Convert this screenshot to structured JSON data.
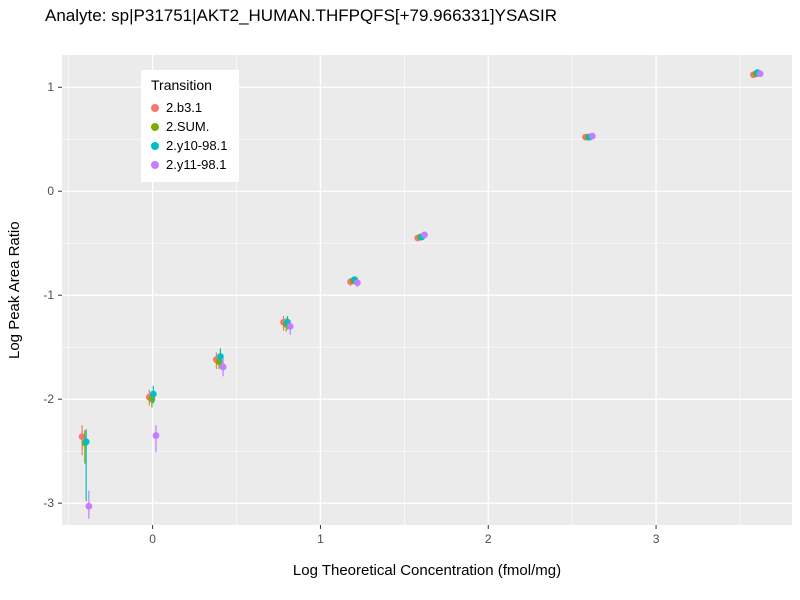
{
  "chart_data": {
    "type": "scatter",
    "title": "Analyte: sp|P31751|AKT2_HUMAN.THFPQFS[+79.966331]YSASIR",
    "xlabel": "Log Theoretical Concentration (fmol/mg)",
    "ylabel": "Log Peak Area Ratio",
    "xlim": [
      -0.54,
      3.81
    ],
    "ylim": [
      -3.21,
      1.31
    ],
    "x_ticks": [
      0,
      1,
      2,
      3
    ],
    "y_ticks": [
      -3,
      -2,
      -1,
      0,
      1
    ],
    "grid": true,
    "panel_bg": "#EBEBEB",
    "grid_color": "#FFFFFF",
    "tick_color": "#333333",
    "tick_label_color": "#4D4D4D",
    "legend": {
      "title": "Transition",
      "position": "top-left-inside"
    },
    "series": [
      {
        "name": "2.b3.1",
        "color": "#F8766D",
        "dx": -0.02,
        "points": [
          {
            "x": -0.4,
            "y": -2.36,
            "lo": -2.54,
            "hi": -2.25
          },
          {
            "x": 0.0,
            "y": -1.98,
            "lo": -2.06,
            "hi": -1.91
          },
          {
            "x": 0.4,
            "y": -1.62,
            "lo": -1.71,
            "hi": -1.55
          },
          {
            "x": 0.8,
            "y": -1.26,
            "lo": -1.34,
            "hi": -1.2
          },
          {
            "x": 1.2,
            "y": -0.87,
            "lo": -0.91,
            "hi": -0.84
          },
          {
            "x": 1.6,
            "y": -0.45,
            "lo": -0.47,
            "hi": -0.43
          },
          {
            "x": 2.6,
            "y": 0.52,
            "lo": 0.5,
            "hi": 0.53
          },
          {
            "x": 3.6,
            "y": 1.12,
            "lo": 1.11,
            "hi": 1.14
          }
        ]
      },
      {
        "name": "2.SUM.",
        "color": "#7CAE00",
        "dx": -0.004,
        "points": [
          {
            "x": -0.4,
            "y": -2.42,
            "lo": -2.62,
            "hi": -2.3
          },
          {
            "x": 0.0,
            "y": -2.0,
            "lo": -2.08,
            "hi": -1.93
          },
          {
            "x": 0.4,
            "y": -1.64,
            "lo": -1.71,
            "hi": -1.57
          },
          {
            "x": 0.8,
            "y": -1.28,
            "lo": -1.35,
            "hi": -1.22
          },
          {
            "x": 1.2,
            "y": -0.86,
            "lo": -0.89,
            "hi": -0.83
          },
          {
            "x": 1.6,
            "y": -0.44,
            "lo": -0.46,
            "hi": -0.42
          },
          {
            "x": 2.6,
            "y": 0.52,
            "lo": 0.51,
            "hi": 0.53
          },
          {
            "x": 3.6,
            "y": 1.13,
            "lo": 1.12,
            "hi": 1.14
          }
        ]
      },
      {
        "name": "2.y10-98.1",
        "color": "#00BFC4",
        "dx": 0.004,
        "points": [
          {
            "x": -0.4,
            "y": -2.41,
            "lo": -2.98,
            "hi": -2.29
          },
          {
            "x": 0.0,
            "y": -1.95,
            "lo": -2.04,
            "hi": -1.87
          },
          {
            "x": 0.4,
            "y": -1.59,
            "lo": -1.69,
            "hi": -1.51
          },
          {
            "x": 0.8,
            "y": -1.26,
            "lo": -1.33,
            "hi": -1.2
          },
          {
            "x": 1.2,
            "y": -0.85,
            "lo": -0.88,
            "hi": -0.82
          },
          {
            "x": 1.6,
            "y": -0.44,
            "lo": -0.46,
            "hi": -0.42
          },
          {
            "x": 2.6,
            "y": 0.52,
            "lo": 0.51,
            "hi": 0.53
          },
          {
            "x": 3.6,
            "y": 1.14,
            "lo": 1.13,
            "hi": 1.15
          }
        ]
      },
      {
        "name": "2.y11-98.1",
        "color": "#C77CFF",
        "dx": 0.02,
        "points": [
          {
            "x": -0.4,
            "y": -3.03,
            "lo": -3.15,
            "hi": -2.88
          },
          {
            "x": 0.0,
            "y": -2.35,
            "lo": -2.51,
            "hi": -2.25
          },
          {
            "x": 0.4,
            "y": -1.69,
            "lo": -1.78,
            "hi": -1.61
          },
          {
            "x": 0.8,
            "y": -1.3,
            "lo": -1.38,
            "hi": -1.24
          },
          {
            "x": 1.2,
            "y": -0.88,
            "lo": -0.92,
            "hi": -0.85
          },
          {
            "x": 1.6,
            "y": -0.42,
            "lo": -0.44,
            "hi": -0.4
          },
          {
            "x": 2.6,
            "y": 0.53,
            "lo": 0.52,
            "hi": 0.54
          },
          {
            "x": 3.6,
            "y": 1.13,
            "lo": 1.12,
            "hi": 1.14
          }
        ]
      }
    ]
  }
}
